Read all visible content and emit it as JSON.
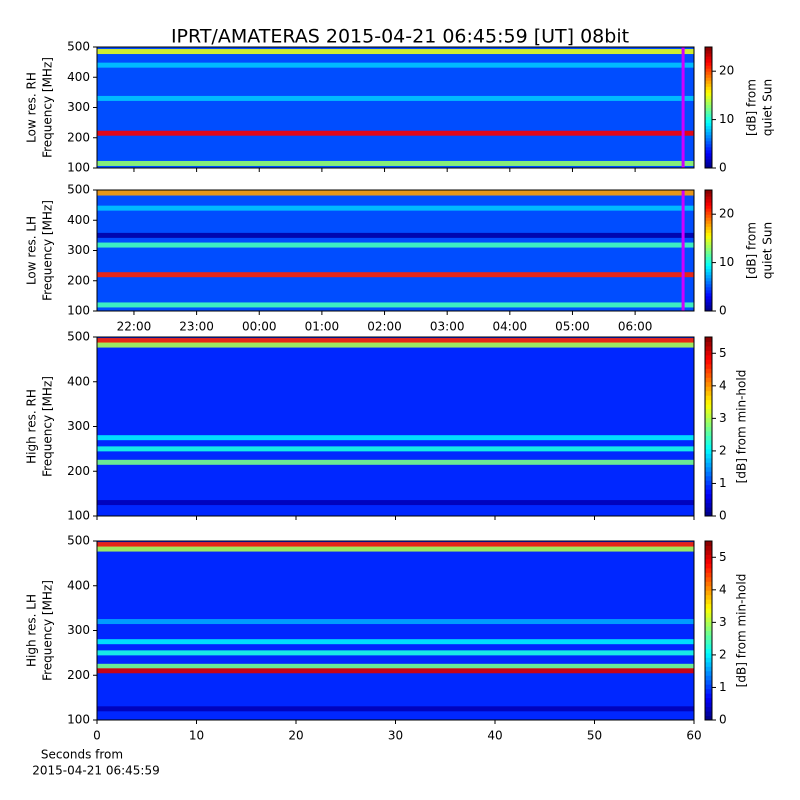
{
  "title": "IPRT/AMATERAS 2015-04-21 06:45:59 [UT]   08bit",
  "chart_data": [
    {
      "type": "heatmap",
      "ylabel": [
        "Low res. RH",
        "Frequency [MHz]"
      ],
      "xlim": [
        21.41,
        30.94
      ],
      "ylim": [
        100,
        500
      ],
      "yticks": [
        100,
        200,
        300,
        400,
        500
      ],
      "background": 5,
      "features": [
        {
          "freq": 485,
          "level": 15
        },
        {
          "freq": 440,
          "level": 8
        },
        {
          "freq": 330,
          "level": 8
        },
        {
          "freq": 215,
          "level": 22
        },
        {
          "freq": 115,
          "level": 13
        }
      ],
      "marker": {
        "x": 30.766,
        "color": "#cc00ff"
      },
      "colorbar": {
        "label": [
          "[dB] from",
          "quiet Sun"
        ],
        "lim": [
          0,
          25
        ],
        "ticks": [
          0,
          10,
          20
        ]
      }
    },
    {
      "type": "heatmap",
      "ylabel": [
        "Low res. LH",
        "Frequency [MHz]"
      ],
      "xlim": [
        21.41,
        30.94
      ],
      "ylim": [
        100,
        500
      ],
      "yticks": [
        100,
        200,
        300,
        400,
        500
      ],
      "xticks": [
        {
          "value": 22,
          "label": "22:00"
        },
        {
          "value": 23,
          "label": "23:00"
        },
        {
          "value": 24,
          "label": "00:00"
        },
        {
          "value": 25,
          "label": "01:00"
        },
        {
          "value": 26,
          "label": "02:00"
        },
        {
          "value": 27,
          "label": "03:00"
        },
        {
          "value": 28,
          "label": "04:00"
        },
        {
          "value": 29,
          "label": "05:00"
        },
        {
          "value": 30,
          "label": "06:00"
        }
      ],
      "background": 5,
      "features": [
        {
          "freq": 490,
          "level": 18
        },
        {
          "freq": 440,
          "level": 8
        },
        {
          "freq": 350,
          "level": 1
        },
        {
          "freq": 318,
          "level": 11
        },
        {
          "freq": 220,
          "level": 21
        },
        {
          "freq": 120,
          "level": 11
        }
      ],
      "marker": {
        "x": 30.766,
        "color": "#cc00ff"
      },
      "colorbar": {
        "label": [
          "[dB] from",
          "quiet Sun"
        ],
        "lim": [
          0,
          25
        ],
        "ticks": [
          0,
          10,
          20
        ]
      }
    },
    {
      "type": "heatmap",
      "ylabel": [
        "High res. RH",
        "Frequency [MHz]"
      ],
      "xlim": [
        0,
        60
      ],
      "ylim": [
        100,
        500
      ],
      "yticks": [
        100,
        200,
        300,
        400,
        500
      ],
      "background": 0.9,
      "features": [
        {
          "freq": 492,
          "level": 4.6
        },
        {
          "freq": 482,
          "level": 3
        },
        {
          "freq": 275,
          "level": 2
        },
        {
          "freq": 250,
          "level": 2.2
        },
        {
          "freq": 220,
          "level": 2.7
        },
        {
          "freq": 130,
          "level": 0.3
        }
      ],
      "colorbar": {
        "label": [
          "[dB] from min-hold"
        ],
        "lim": [
          0,
          5.5
        ],
        "ticks": [
          0,
          1,
          2,
          3,
          4,
          5
        ]
      }
    },
    {
      "type": "heatmap",
      "ylabel": [
        "High res. LH",
        "Frequency [MHz]"
      ],
      "xlim": [
        0,
        60
      ],
      "ylim": [
        100,
        500
      ],
      "yticks": [
        100,
        200,
        300,
        400,
        500
      ],
      "xticks": [
        0,
        10,
        20,
        30,
        40,
        50,
        60
      ],
      "xlabel": [
        "Seconds from",
        "2015-04-21 06:45:59"
      ],
      "background": 0.9,
      "features": [
        {
          "freq": 492,
          "level": 4.6
        },
        {
          "freq": 482,
          "level": 3
        },
        {
          "freq": 320,
          "level": 1.6
        },
        {
          "freq": 275,
          "level": 2
        },
        {
          "freq": 250,
          "level": 2.2
        },
        {
          "freq": 220,
          "level": 2.7
        },
        {
          "freq": 210,
          "level": 5
        },
        {
          "freq": 125,
          "level": 0.3
        }
      ],
      "colorbar": {
        "label": [
          "[dB] from min-hold"
        ],
        "lim": [
          0,
          5.5
        ],
        "ticks": [
          0,
          1,
          2,
          3,
          4,
          5
        ]
      }
    }
  ]
}
